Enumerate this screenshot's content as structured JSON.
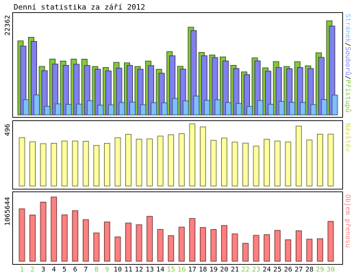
{
  "title": "Denní statistika za září 2012",
  "colors": {
    "hits": "#83c83b",
    "files": "#8080ef",
    "pages": "#7fbfff",
    "visits": "#ffff9f",
    "kbytes": "#ff8080",
    "weekend_label": "#83c83b",
    "weekday_label": "#000000"
  },
  "chart_data": [
    {
      "type": "bar",
      "panel": "hits_files_pages",
      "categories": [
        "1",
        "2",
        "3",
        "4",
        "5",
        "6",
        "7",
        "8",
        "9",
        "10",
        "11",
        "12",
        "13",
        "14",
        "15",
        "16",
        "17",
        "18",
        "19",
        "20",
        "21",
        "22",
        "23",
        "24",
        "25",
        "26",
        "27",
        "28",
        "29",
        "30"
      ],
      "weekend_days": [
        1,
        2,
        8,
        9,
        15,
        16,
        22,
        23,
        29,
        30
      ],
      "y_tick_label": "22362",
      "ylim": [
        0,
        22362
      ],
      "axis_label_parts": [
        {
          "text": "Stránek",
          "color": "#7fbfff"
        },
        {
          "text": "/",
          "color": "#000000"
        },
        {
          "text": "Souborů",
          "color": "#8080ef"
        },
        {
          "text": "/",
          "color": "#000000"
        },
        {
          "text": "Přístupů",
          "color": "#83c83b"
        }
      ],
      "series": [
        {
          "name": "Přístupů",
          "values": [
            16580,
            17380,
            10860,
            12500,
            12060,
            12500,
            12480,
            10840,
            10620,
            11760,
            11660,
            10840,
            12060,
            10220,
            14160,
            10880,
            19640,
            14000,
            13420,
            12980,
            11100,
            9640,
            12760,
            10540,
            11940,
            10850,
            11920,
            11000,
            13920,
            21060
          ]
        },
        {
          "name": "Souborů",
          "values": [
            15410,
            16450,
            9900,
            11380,
            11090,
            11340,
            11070,
            10230,
            9850,
            10480,
            11080,
            10230,
            11030,
            9330,
            13230,
            10250,
            18880,
            13240,
            12840,
            12080,
            10390,
            9010,
            12100,
            9810,
            10610,
            10350,
            10620,
            10390,
            12880,
            19900
          ]
        },
        {
          "name": "Stránek",
          "values": [
            3400,
            4470,
            1930,
            2470,
            2360,
            2420,
            3180,
            2180,
            2260,
            2770,
            2870,
            2290,
            2730,
            2710,
            3680,
            3150,
            4230,
            3260,
            3370,
            2770,
            2560,
            1900,
            3250,
            2390,
            3020,
            2810,
            2780,
            2320,
            3430,
            4440
          ]
        }
      ]
    },
    {
      "type": "bar",
      "panel": "visits",
      "categories": [
        "1",
        "2",
        "3",
        "4",
        "5",
        "6",
        "7",
        "8",
        "9",
        "10",
        "11",
        "12",
        "13",
        "14",
        "15",
        "16",
        "17",
        "18",
        "19",
        "20",
        "21",
        "22",
        "23",
        "24",
        "25",
        "26",
        "27",
        "28",
        "29",
        "30"
      ],
      "y_tick_label": "496",
      "ylim": [
        0,
        496
      ],
      "axis_label": "Návštěv",
      "series": [
        {
          "name": "Návštěv",
          "values": [
            386,
            353,
            338,
            341,
            359,
            359,
            357,
            324,
            340,
            385,
            412,
            374,
            376,
            398,
            409,
            417,
            496,
            471,
            364,
            382,
            350,
            342,
            318,
            373,
            359,
            351,
            478,
            367,
            413,
            413
          ]
        }
      ]
    },
    {
      "type": "bar",
      "panel": "kbytes",
      "categories": [
        "1",
        "2",
        "3",
        "4",
        "5",
        "6",
        "7",
        "8",
        "9",
        "10",
        "11",
        "12",
        "13",
        "14",
        "15",
        "16",
        "17",
        "18",
        "19",
        "20",
        "21",
        "22",
        "23",
        "24",
        "25",
        "26",
        "27",
        "28",
        "29",
        "30"
      ],
      "y_tick_label": "1065644",
      "ylim": [
        0,
        1065644
      ],
      "axis_label": "Objem přenosu",
      "series": [
        {
          "name": "Objem přenosu",
          "values": [
            870000,
            767000,
            980000,
            1065644,
            770000,
            839000,
            690000,
            469000,
            651000,
            404000,
            634000,
            605000,
            745000,
            528000,
            424000,
            566000,
            708000,
            559000,
            526000,
            593000,
            454000,
            298000,
            430000,
            442000,
            512000,
            356000,
            505000,
            366000,
            374000,
            661000
          ]
        }
      ]
    }
  ]
}
